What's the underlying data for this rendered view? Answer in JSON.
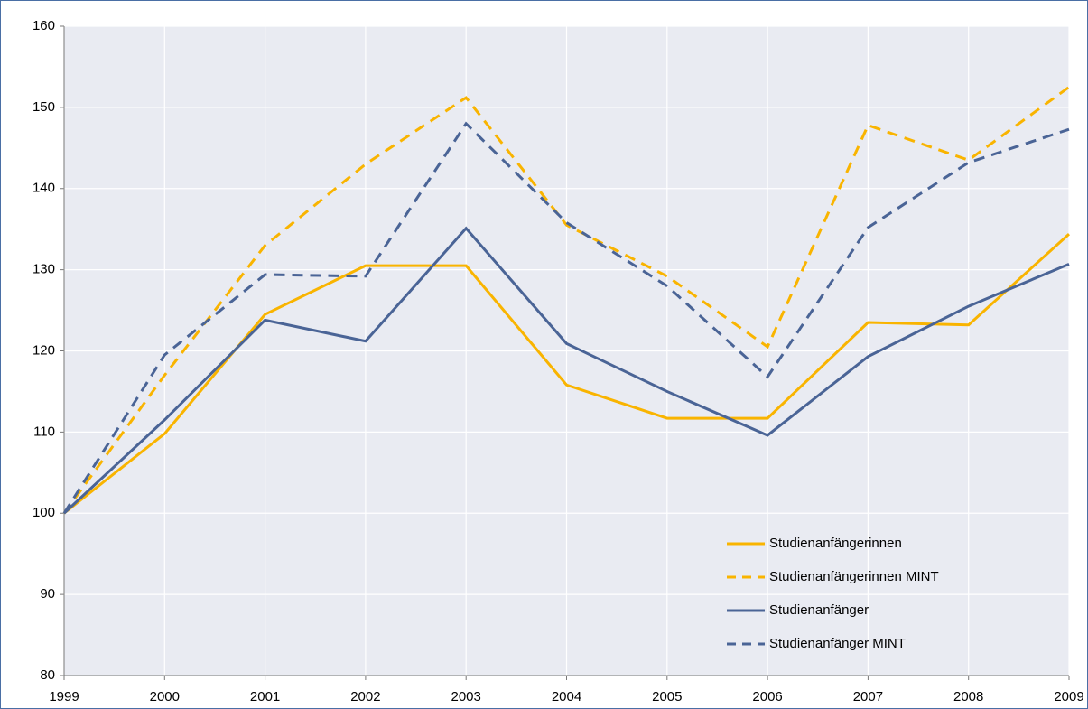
{
  "chart_data": {
    "type": "line",
    "x": [
      1999,
      2000,
      2001,
      2002,
      2003,
      2004,
      2005,
      2006,
      2007,
      2008,
      2009
    ],
    "xlim": [
      1999,
      2009
    ],
    "xticks": [
      1999,
      2000,
      2001,
      2002,
      2003,
      2004,
      2005,
      2006,
      2007,
      2008,
      2009
    ],
    "ylim": [
      80,
      160
    ],
    "yticks": [
      80,
      90,
      100,
      110,
      120,
      130,
      140,
      150,
      160
    ],
    "grid": true,
    "legend": "lower right",
    "series": [
      {
        "name": "Studienanfängerinnen",
        "color": "#f9b400",
        "style": "solid",
        "values": [
          100,
          109.8,
          124.5,
          130.5,
          130.5,
          115.8,
          111.7,
          111.7,
          123.5,
          123.2,
          134.4
        ]
      },
      {
        "name": "Studienanfängerinnen MINT",
        "color": "#f9b400",
        "style": "dashed",
        "values": [
          100,
          117,
          133,
          143,
          151.2,
          135.5,
          129.2,
          120.5,
          147.8,
          143.5,
          152.5
        ]
      },
      {
        "name": "Studienanfänger",
        "color": "#4a6496",
        "style": "solid",
        "values": [
          100,
          111.5,
          123.8,
          121.2,
          135.1,
          120.9,
          115,
          109.6,
          119.3,
          125.5,
          130.7
        ]
      },
      {
        "name": "Studienanfänger MINT",
        "color": "#4a6496",
        "style": "dashed",
        "values": [
          100,
          119.5,
          129.4,
          129.2,
          148,
          135.8,
          128,
          116.8,
          135.2,
          143.2,
          147.3
        ]
      }
    ]
  }
}
